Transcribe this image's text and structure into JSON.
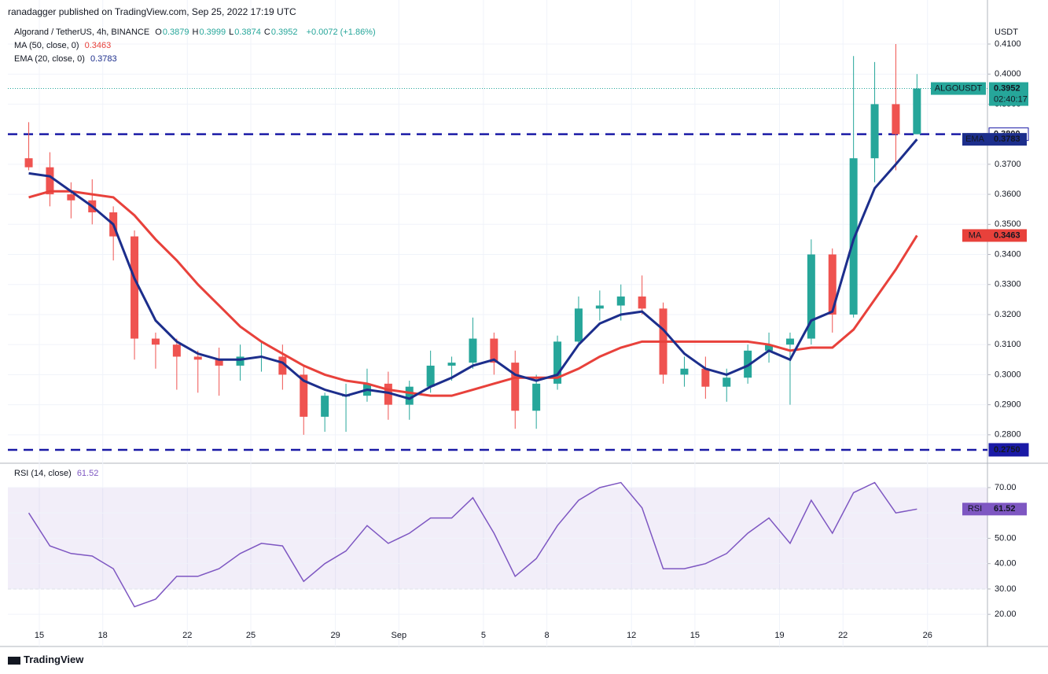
{
  "header": {
    "publisher": "ranadagger published on TradingView.com, Sep 25, 2022 17:19 UTC",
    "symbol": "Algorand / TetherUS, 4h, BINANCE",
    "ohlc": [
      {
        "key": "O",
        "value": 0.3879
      },
      {
        "key": "H",
        "value": 0.3999
      },
      {
        "key": "L",
        "value": 0.3874
      },
      {
        "key": "C",
        "value": 0.3952
      }
    ],
    "change": "+0.0072 (+1.86%)"
  },
  "footer": {
    "brand": "TradingView"
  },
  "chart_data": [
    {
      "type": "candlestick",
      "currency": "USDT",
      "symbol": "ALGOUSDT",
      "countdown": "02:40:17",
      "categories": [
        null,
        "15",
        null,
        null,
        "18",
        null,
        null,
        null,
        "22",
        null,
        null,
        "25",
        null,
        null,
        null,
        "29",
        null,
        null,
        "Sep",
        null,
        null,
        null,
        "5",
        null,
        null,
        "8",
        null,
        null,
        null,
        "12",
        null,
        null,
        "15",
        null,
        null,
        null,
        "19",
        null,
        null,
        "22",
        null,
        null,
        null,
        "26"
      ],
      "open": [
        0.372,
        0.369,
        0.36,
        0.358,
        0.354,
        0.346,
        0.312,
        0.31,
        0.306,
        0.305,
        0.303,
        0.306,
        0.306,
        0.3,
        0.286,
        0.293,
        0.293,
        0.297,
        0.29,
        0.296,
        0.303,
        0.304,
        0.312,
        0.304,
        0.288,
        0.297,
        0.311,
        0.322,
        0.323,
        0.326,
        0.322,
        0.3,
        0.302,
        0.296,
        0.299,
        0.308,
        0.31,
        0.312,
        0.34,
        0.32,
        0.372,
        0.39,
        0.38,
        null
      ],
      "high": [
        0.384,
        0.374,
        0.364,
        0.365,
        0.356,
        0.348,
        0.314,
        0.312,
        0.308,
        0.309,
        0.31,
        0.311,
        0.31,
        0.303,
        0.294,
        0.297,
        0.302,
        0.301,
        0.298,
        0.308,
        0.306,
        0.319,
        0.314,
        0.308,
        0.3,
        0.313,
        0.326,
        0.328,
        0.33,
        0.333,
        0.324,
        0.306,
        0.306,
        0.302,
        0.31,
        0.314,
        0.314,
        0.345,
        0.342,
        0.406,
        0.404,
        0.41,
        0.4,
        null
      ],
      "low": [
        0.368,
        0.356,
        0.352,
        0.35,
        0.338,
        0.305,
        0.302,
        0.295,
        0.294,
        0.293,
        0.298,
        0.301,
        0.295,
        0.28,
        0.281,
        0.281,
        0.291,
        0.285,
        0.285,
        0.294,
        0.298,
        0.302,
        0.3,
        0.282,
        0.282,
        0.295,
        0.31,
        0.318,
        0.318,
        0.32,
        0.297,
        0.296,
        0.292,
        0.291,
        0.297,
        0.304,
        0.29,
        0.31,
        0.314,
        0.319,
        0.364,
        0.368,
        0.38,
        null
      ],
      "close": [
        0.369,
        0.36,
        0.358,
        0.354,
        0.346,
        0.312,
        0.31,
        0.306,
        0.305,
        0.303,
        0.306,
        0.306,
        0.3,
        0.286,
        0.293,
        0.293,
        0.297,
        0.29,
        0.296,
        0.303,
        0.304,
        0.312,
        0.304,
        0.288,
        0.297,
        0.311,
        0.322,
        0.323,
        0.326,
        0.322,
        0.3,
        0.302,
        0.296,
        0.299,
        0.308,
        0.31,
        0.312,
        0.34,
        0.32,
        0.372,
        0.39,
        0.38,
        0.3952,
        null
      ],
      "up_color": "#26a69a",
      "down_color": "#ef5350",
      "overlays": [
        {
          "name": "MA (50, close, 0)",
          "tag": "MA",
          "color": "#e8413b",
          "values": [
            0.359,
            0.361,
            0.361,
            0.36,
            0.359,
            0.353,
            0.345,
            0.338,
            0.33,
            0.323,
            0.316,
            0.311,
            0.307,
            0.303,
            0.3,
            0.298,
            0.297,
            0.295,
            0.294,
            0.293,
            0.293,
            0.295,
            0.297,
            0.299,
            0.299,
            0.299,
            0.302,
            0.306,
            0.309,
            0.311,
            0.311,
            0.311,
            0.311,
            0.311,
            0.311,
            0.31,
            0.308,
            0.309,
            0.309,
            0.315,
            0.325,
            0.335,
            0.3463,
            null
          ]
        },
        {
          "name": "EMA (20, close, 0)",
          "tag": "EMA",
          "color": "#1c2e8c",
          "values": [
            0.367,
            0.366,
            0.361,
            0.356,
            0.35,
            0.332,
            0.318,
            0.311,
            0.307,
            0.305,
            0.305,
            0.306,
            0.304,
            0.298,
            0.295,
            0.293,
            0.295,
            0.294,
            0.292,
            0.296,
            0.299,
            0.303,
            0.305,
            0.3,
            0.298,
            0.3,
            0.31,
            0.317,
            0.32,
            0.321,
            0.315,
            0.307,
            0.302,
            0.3,
            0.303,
            0.308,
            0.305,
            0.318,
            0.321,
            0.345,
            0.362,
            0.37,
            0.3783,
            null
          ]
        }
      ],
      "levels": [
        {
          "value": 0.38,
          "label": "0.3800"
        },
        {
          "value": 0.275,
          "label": "0.2750"
        }
      ],
      "level_color": "#1a1aa6",
      "ylim": [
        0.2708,
        0.4168
      ],
      "yticks": [
        {
          "value": 0.28,
          "label": "0.2800"
        },
        {
          "value": 0.29,
          "label": "0.2900"
        },
        {
          "value": 0.3,
          "label": "0.3000"
        },
        {
          "value": 0.31,
          "label": "0.3100"
        },
        {
          "value": 0.32,
          "label": "0.3200"
        },
        {
          "value": 0.33,
          "label": "0.3300"
        },
        {
          "value": 0.34,
          "label": "0.3400"
        },
        {
          "value": 0.35,
          "label": "0.3500"
        },
        {
          "value": 0.36,
          "label": "0.3600"
        },
        {
          "value": 0.37,
          "label": "0.3700"
        },
        {
          "value": 0.38,
          "label": "0.3800"
        },
        {
          "value": 0.39,
          "label": "0.3900"
        },
        {
          "value": 0.4,
          "label": "0.4000"
        },
        {
          "value": 0.41,
          "label": "0.4100"
        }
      ],
      "grid": true
    },
    {
      "type": "line",
      "title": "RSI (14, close)",
      "tag": "RSI",
      "color": "#7e57c2",
      "values": [
        60,
        47,
        44,
        43,
        38,
        23,
        26,
        35,
        35,
        38,
        44,
        48,
        47,
        33,
        40,
        45,
        55,
        48,
        52,
        58,
        58,
        66,
        52,
        35,
        42,
        55,
        65,
        70,
        72,
        62,
        38,
        38,
        40,
        44,
        52,
        58,
        48,
        65,
        52,
        68,
        72,
        60,
        61.52,
        null
      ],
      "band": [
        30,
        70
      ],
      "ylim": [
        15.7,
        79.3
      ],
      "yticks": [
        {
          "value": 20,
          "label": "20.00"
        },
        {
          "value": 30,
          "label": "30.00"
        },
        {
          "value": 40,
          "label": "40.00"
        },
        {
          "value": 50,
          "label": "50.00"
        },
        {
          "value": 60,
          "label": "60.00"
        },
        {
          "value": 70,
          "label": "70.00"
        }
      ],
      "grid": true
    }
  ]
}
